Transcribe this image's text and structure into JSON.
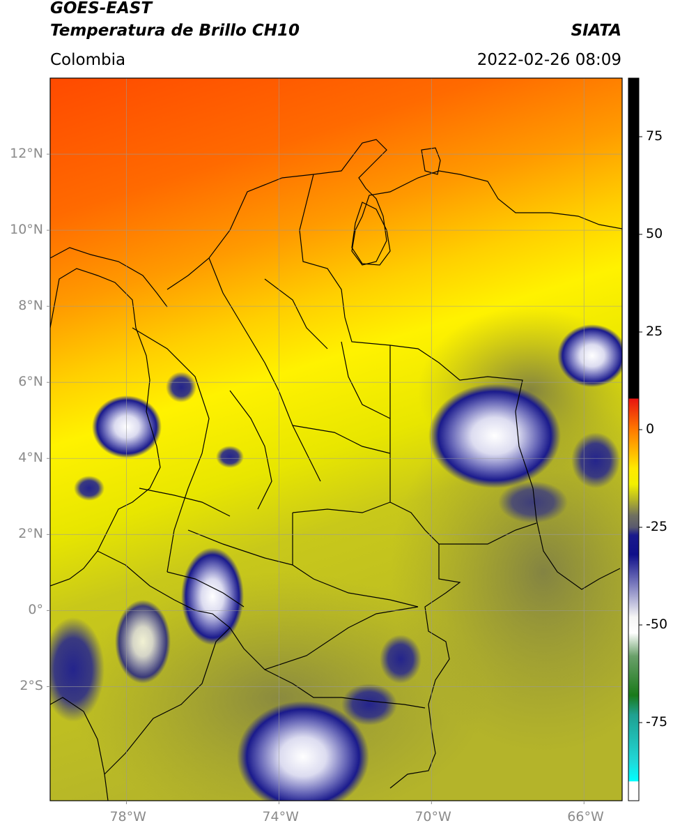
{
  "header": {
    "satellite": "GOES-EAST",
    "product": "Temperatura de Brillo CH10",
    "region": "Colombia",
    "agency": "SIATA",
    "datetime": "2022-02-26 08:09"
  },
  "map": {
    "lon_range": [
      -80,
      -65
    ],
    "lat_range": [
      -5,
      14
    ],
    "lat_ticks": [
      {
        "value": 12,
        "label": "12°N"
      },
      {
        "value": 10,
        "label": "10°N"
      },
      {
        "value": 8,
        "label": "8°N"
      },
      {
        "value": 6,
        "label": "6°N"
      },
      {
        "value": 4,
        "label": "4°N"
      },
      {
        "value": 2,
        "label": "2°N"
      },
      {
        "value": 0,
        "label": "0°"
      },
      {
        "value": -2,
        "label": "2°S"
      }
    ],
    "lon_ticks": [
      {
        "value": -78,
        "label": "78°W"
      },
      {
        "value": -74,
        "label": "74°W"
      },
      {
        "value": -70,
        "label": "70°W"
      },
      {
        "value": -66,
        "label": "66°W"
      }
    ],
    "grid": true
  },
  "colorbar": {
    "range": [
      -95,
      90
    ],
    "ticks": [
      {
        "value": 75,
        "label": "75"
      },
      {
        "value": 50,
        "label": "50"
      },
      {
        "value": 25,
        "label": "25"
      },
      {
        "value": 0,
        "label": "0"
      },
      {
        "value": -25,
        "label": "-25"
      },
      {
        "value": -50,
        "label": "-50"
      },
      {
        "value": -75,
        "label": "-75"
      }
    ],
    "stops": [
      {
        "value": 90,
        "color": "#000000"
      },
      {
        "value": 8,
        "color": "#000000"
      },
      {
        "value": 7.9,
        "color": "#e81410"
      },
      {
        "value": 0,
        "color": "#ff7a00"
      },
      {
        "value": -10,
        "color": "#ffea00"
      },
      {
        "value": -14,
        "color": "#f2f000"
      },
      {
        "value": -18,
        "color": "#b4b428"
      },
      {
        "value": -22,
        "color": "#707060"
      },
      {
        "value": -25,
        "color": "#5a5a6e"
      },
      {
        "value": -27,
        "color": "#1a1a8c"
      },
      {
        "value": -32,
        "color": "#10108a"
      },
      {
        "value": -40,
        "color": "#8080c0"
      },
      {
        "value": -48,
        "color": "#f5f5f5"
      },
      {
        "value": -52,
        "color": "#ffffff"
      },
      {
        "value": -58,
        "color": "#6aa06a"
      },
      {
        "value": -68,
        "color": "#1a7a1a"
      },
      {
        "value": -73,
        "color": "#20a090"
      },
      {
        "value": -85,
        "color": "#20d8d8"
      },
      {
        "value": -90,
        "color": "#00ffff"
      },
      {
        "value": -90.1,
        "color": "#ffffff"
      },
      {
        "value": -95,
        "color": "#ffffff"
      }
    ]
  }
}
